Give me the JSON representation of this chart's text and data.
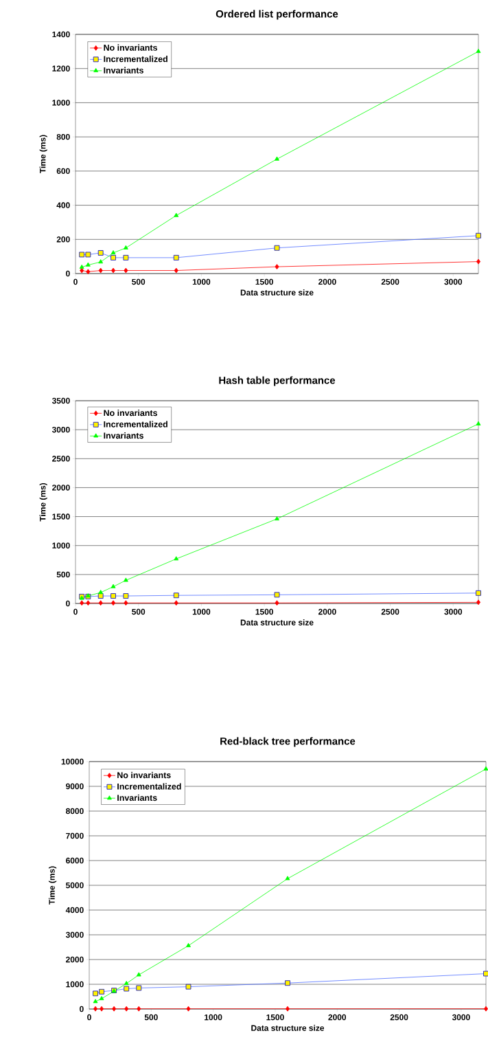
{
  "chart_data": [
    {
      "type": "line",
      "title": "Ordered list performance",
      "xlabel": "Data structure size",
      "ylabel": "Time (ms)",
      "x": [
        50,
        100,
        200,
        300,
        400,
        800,
        1600,
        3200
      ],
      "xlim": [
        0,
        3200
      ],
      "xticks": [
        0,
        500,
        1000,
        1500,
        2000,
        2500,
        3000
      ],
      "ylim": [
        0,
        1400
      ],
      "yticks": [
        0,
        200,
        400,
        600,
        800,
        1000,
        1200,
        1400
      ],
      "grid": "y",
      "legend": "top left",
      "series": [
        {
          "name": "No invariants",
          "color": "#ff0000",
          "marker": "diamond",
          "values": [
            18,
            11,
            18,
            18,
            18,
            18,
            40,
            70
          ]
        },
        {
          "name": "Incrementalized",
          "color": "#4f6fff",
          "marker": "square",
          "values": [
            111,
            111,
            121,
            93,
            93,
            93,
            150,
            222
          ]
        },
        {
          "name": "Invariants",
          "color": "#00ff00",
          "marker": "triangle",
          "values": [
            37,
            50,
            68,
            121,
            150,
            340,
            670,
            1300
          ]
        }
      ]
    },
    {
      "type": "line",
      "title": "Hash table performance",
      "xlabel": "Data structure size",
      "ylabel": "Time (ms)",
      "x": [
        50,
        100,
        200,
        300,
        400,
        800,
        1600,
        3200
      ],
      "xlim": [
        0,
        3200
      ],
      "xticks": [
        0,
        500,
        1000,
        1500,
        2000,
        2500,
        3000
      ],
      "ylim": [
        0,
        3500
      ],
      "yticks": [
        0,
        500,
        1000,
        1500,
        2000,
        2500,
        3000,
        3500
      ],
      "grid": "y",
      "legend": "top left",
      "series": [
        {
          "name": "No invariants",
          "color": "#ff0000",
          "marker": "diamond",
          "values": [
            10,
            10,
            10,
            10,
            10,
            10,
            10,
            20
          ]
        },
        {
          "name": "Incrementalized",
          "color": "#4f6fff",
          "marker": "square",
          "values": [
            120,
            120,
            130,
            130,
            130,
            140,
            150,
            180
          ]
        },
        {
          "name": "Invariants",
          "color": "#00ff00",
          "marker": "triangle",
          "values": [
            90,
            130,
            190,
            290,
            400,
            770,
            1460,
            3100
          ]
        }
      ]
    },
    {
      "type": "line",
      "title": "Red-black tree performance",
      "xlabel": "Data structure size",
      "ylabel": "Time (ms)",
      "x": [
        50,
        100,
        200,
        300,
        400,
        800,
        1600,
        3200
      ],
      "xlim": [
        0,
        3200
      ],
      "xticks": [
        0,
        500,
        1000,
        1500,
        2000,
        2500,
        3000
      ],
      "ylim": [
        0,
        10000
      ],
      "yticks": [
        0,
        1000,
        2000,
        3000,
        4000,
        5000,
        6000,
        7000,
        8000,
        9000,
        10000
      ],
      "grid": "y",
      "legend": "top left",
      "series": [
        {
          "name": "No invariants",
          "color": "#ff0000",
          "marker": "diamond",
          "values": [
            10,
            10,
            10,
            10,
            10,
            10,
            10,
            10
          ]
        },
        {
          "name": "Incrementalized",
          "color": "#4f6fff",
          "marker": "square",
          "values": [
            630,
            700,
            750,
            820,
            850,
            900,
            1050,
            1430
          ]
        },
        {
          "name": "Invariants",
          "color": "#00ff00",
          "marker": "triangle",
          "values": [
            300,
            420,
            720,
            1030,
            1380,
            2560,
            5270,
            9700
          ]
        }
      ]
    }
  ]
}
